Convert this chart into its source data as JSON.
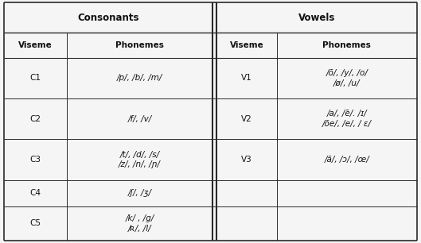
{
  "consonants_header": "Consonants",
  "vowels_header": "Vowels",
  "col_headers": [
    "Viseme",
    "Phonemes",
    "Viseme",
    "Phonemes"
  ],
  "rows": [
    {
      "c_viseme": "C1",
      "c_phonemes": "/p/, /b/, /m/",
      "v_viseme": "V1",
      "v_phonemes": "/õ/, /y/, /o/\n/ø/, /u/"
    },
    {
      "c_viseme": "C2",
      "c_phonemes": "/f/, /v/",
      "v_viseme": "V2",
      "v_phonemes": "/a/, /ẽ/. /ɪ/\n/õe/, /e/, / ɛ/"
    },
    {
      "c_viseme": "C3",
      "c_phonemes": "/t/, /d/, /s/\n/z/, /n/, /ɲ/",
      "v_viseme": "V3",
      "v_phonemes": "/ã/, /ɔ/, /œ/"
    },
    {
      "c_viseme": "C4",
      "c_phonemes": "/ʃ/, /ʒ/",
      "v_viseme": "",
      "v_phonemes": ""
    },
    {
      "c_viseme": "C5",
      "c_phonemes": "/k/ , /g/\n/ʀ/, /l/",
      "v_viseme": "",
      "v_phonemes": ""
    }
  ],
  "line_color": "#2a2a2a",
  "text_color": "#111111",
  "font_size": 7.5,
  "header_font_size": 8.5,
  "sub_header_font_size": 7.5,
  "bg_color": "#f5f5f5"
}
